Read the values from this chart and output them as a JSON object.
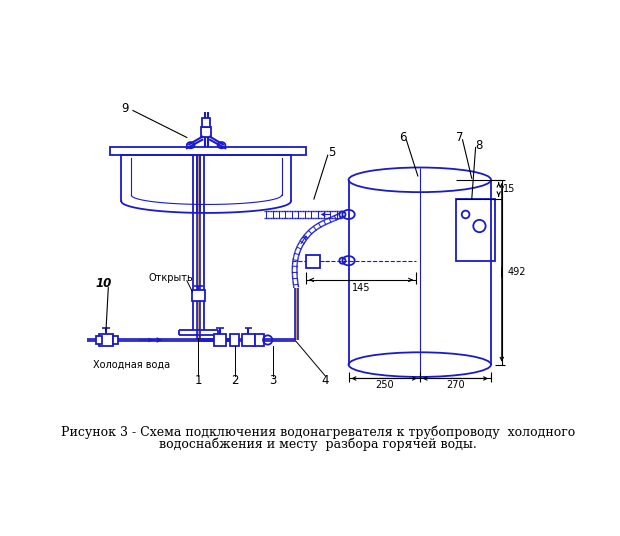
{
  "title_line1": "Рисунок 3 - Схема подключения водонагревателя к трубопроводу  холодного",
  "title_line2": "водоснабжения и месту  разбора горячей воды.",
  "bg_color": "#ffffff",
  "lc": "#1a1acd",
  "tc": "#000000",
  "pipe_color": "#c8a060",
  "caption_fontsize": 9,
  "label_fontsize": 8.5
}
